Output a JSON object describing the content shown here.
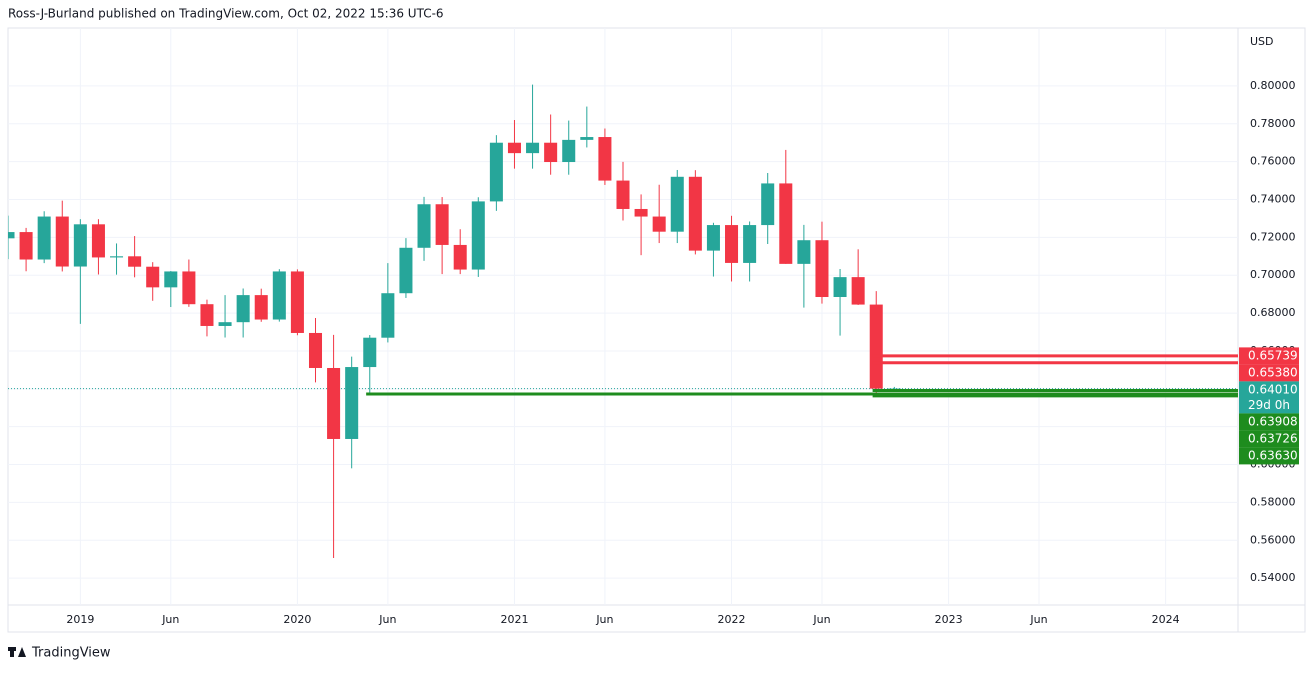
{
  "header": {
    "text": "Ross-J-Burland published on TradingView.com, Oct 02, 2022 15:36 UTC-6"
  },
  "footer": {
    "brand": "TradingView"
  },
  "chart_data": {
    "type": "candlestick",
    "y_axis_label": "USD",
    "up_color": "#26a69a",
    "down_color": "#f23645",
    "grid": true,
    "x": [
      "2018-09",
      "2018-10",
      "2018-11",
      "2018-12",
      "2019-01",
      "2019-02",
      "2019-03",
      "2019-04",
      "2019-05",
      "2019-06",
      "2019-07",
      "2019-08",
      "2019-09",
      "2019-10",
      "2019-11",
      "2019-12",
      "2020-01",
      "2020-02",
      "2020-03",
      "2020-04",
      "2020-05",
      "2020-06",
      "2020-07",
      "2020-08",
      "2020-09",
      "2020-10",
      "2020-11",
      "2020-12",
      "2021-01",
      "2021-02",
      "2021-03",
      "2021-04",
      "2021-05",
      "2021-06",
      "2021-07",
      "2021-08",
      "2021-09",
      "2021-10",
      "2021-11",
      "2021-12",
      "2022-01",
      "2022-02",
      "2022-03",
      "2022-04",
      "2022-05",
      "2022-06",
      "2022-07",
      "2022-08",
      "2022-09",
      "2022-10"
    ],
    "open": [
      0.7195,
      0.7228,
      0.7083,
      0.731,
      0.7046,
      0.7269,
      0.7094,
      0.71,
      0.7045,
      0.6936,
      0.702,
      0.6847,
      0.6732,
      0.6752,
      0.6895,
      0.6766,
      0.702,
      0.6695,
      0.651,
      0.6135,
      0.6515,
      0.667,
      0.6905,
      0.7145,
      0.7375,
      0.716,
      0.703,
      0.739,
      0.77,
      0.7645,
      0.77,
      0.7598,
      0.7715,
      0.773,
      0.75,
      0.735,
      0.731,
      0.723,
      0.752,
      0.713,
      0.7265,
      0.7065,
      0.7265,
      0.7485,
      0.706,
      0.7185,
      0.6885,
      0.699,
      0.6845,
      0.6401
    ],
    "high": [
      0.7315,
      0.725,
      0.7338,
      0.7394,
      0.7296,
      0.7296,
      0.7168,
      0.7207,
      0.7069,
      0.7022,
      0.7083,
      0.6871,
      0.6895,
      0.693,
      0.6929,
      0.7032,
      0.7031,
      0.6774,
      0.6685,
      0.657,
      0.6684,
      0.7064,
      0.7196,
      0.7414,
      0.7413,
      0.7243,
      0.7412,
      0.774,
      0.782,
      0.8007,
      0.7849,
      0.7817,
      0.7891,
      0.7775,
      0.7599,
      0.7427,
      0.7478,
      0.7556,
      0.7555,
      0.7277,
      0.7314,
      0.7284,
      0.754,
      0.7662,
      0.7266,
      0.7283,
      0.7033,
      0.7137,
      0.6916,
      0.641
    ],
    "low": [
      0.7085,
      0.7021,
      0.7064,
      0.702,
      0.6743,
      0.7004,
      0.7003,
      0.6989,
      0.6865,
      0.6832,
      0.6833,
      0.6677,
      0.6671,
      0.6671,
      0.6754,
      0.6755,
      0.6683,
      0.6434,
      0.5506,
      0.598,
      0.6372,
      0.6645,
      0.688,
      0.7076,
      0.7006,
      0.7006,
      0.6991,
      0.734,
      0.7563,
      0.7563,
      0.7531,
      0.7531,
      0.7675,
      0.7477,
      0.7289,
      0.7106,
      0.717,
      0.717,
      0.711,
      0.6993,
      0.6967,
      0.6967,
      0.7165,
      0.706,
      0.6829,
      0.685,
      0.6681,
      0.6843,
      0.6363,
      0.639
    ],
    "close": [
      0.7228,
      0.7083,
      0.731,
      0.7046,
      0.7269,
      0.7094,
      0.71,
      0.7045,
      0.6936,
      0.702,
      0.6847,
      0.6732,
      0.6752,
      0.6895,
      0.6766,
      0.702,
      0.6695,
      0.651,
      0.6135,
      0.6515,
      0.667,
      0.6905,
      0.7145,
      0.7375,
      0.716,
      0.703,
      0.739,
      0.77,
      0.7645,
      0.77,
      0.7598,
      0.7715,
      0.773,
      0.75,
      0.735,
      0.731,
      0.723,
      0.752,
      0.713,
      0.7265,
      0.7065,
      0.7265,
      0.7485,
      0.706,
      0.7185,
      0.6885,
      0.699,
      0.6845,
      0.6401,
      0.6401
    ],
    "xlim": [
      "2018-09",
      "2024-05"
    ],
    "xticks": [
      {
        "value": "2019-01",
        "label": "2019"
      },
      {
        "value": "2019-06",
        "label": "Jun"
      },
      {
        "value": "2020-01",
        "label": "2020"
      },
      {
        "value": "2020-06",
        "label": "Jun"
      },
      {
        "value": "2021-01",
        "label": "2021"
      },
      {
        "value": "2021-06",
        "label": "Jun"
      },
      {
        "value": "2022-01",
        "label": "2022"
      },
      {
        "value": "2022-06",
        "label": "Jun"
      },
      {
        "value": "2023-01",
        "label": "2023"
      },
      {
        "value": "2023-06",
        "label": "Jun"
      },
      {
        "value": "2024-01",
        "label": "2024"
      }
    ],
    "ylim": [
      0.5258,
      0.8306
    ],
    "yticks": [
      {
        "value": 0.54,
        "label": "0.54000"
      },
      {
        "value": 0.56,
        "label": "0.56000"
      },
      {
        "value": 0.58,
        "label": "0.58000"
      },
      {
        "value": 0.6,
        "label": "0.60000"
      },
      {
        "value": 0.62,
        "label": "0.62000"
      },
      {
        "value": 0.64,
        "label": "0.64000"
      },
      {
        "value": 0.66,
        "label": "0.66000"
      },
      {
        "value": 0.68,
        "label": "0.68000"
      },
      {
        "value": 0.7,
        "label": "0.70000"
      },
      {
        "value": 0.72,
        "label": "0.72000"
      },
      {
        "value": 0.74,
        "label": "0.74000"
      },
      {
        "value": 0.76,
        "label": "0.76000"
      },
      {
        "value": 0.78,
        "label": "0.78000"
      },
      {
        "value": 0.8,
        "label": "0.80000"
      }
    ],
    "levels": [
      {
        "value": 0.65739,
        "color": "#f23645",
        "from": "2022-09"
      },
      {
        "value": 0.6538,
        "label": "0.65380",
        "color": "#f23645",
        "from": "2022-09"
      },
      {
        "value": 0.63908,
        "color": "#1e8c1e",
        "from": "2022-09"
      },
      {
        "value": 0.63726,
        "color": "#1e8c1e",
        "from": "2020-05"
      },
      {
        "value": 0.6363,
        "label": "0.63630",
        "color": "#1e8c1e",
        "from": "2022-09"
      }
    ],
    "last_price": {
      "value": 0.6401,
      "label": "0.64010",
      "countdown": "29d 0h",
      "color": "#26a69a"
    }
  }
}
